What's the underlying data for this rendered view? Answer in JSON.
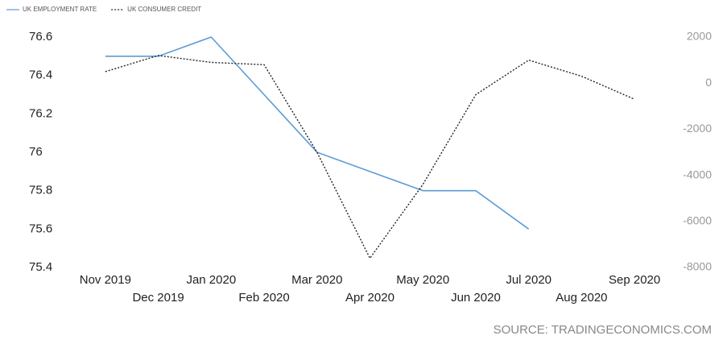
{
  "chart_data": {
    "type": "line",
    "categories": [
      "Nov 2019",
      "Dec 2019",
      "Jan 2020",
      "Feb 2020",
      "Mar 2020",
      "Apr 2020",
      "May 2020",
      "Jun 2020",
      "Jul 2020",
      "Aug 2020",
      "Sep 2020"
    ],
    "series": [
      {
        "name": "UK EMPLOYMENT RATE",
        "color": "#5b9bd5",
        "line_style": "solid",
        "axis": "y",
        "values": [
          76.5,
          76.5,
          76.6,
          76.3,
          76.0,
          75.9,
          75.8,
          75.8,
          75.6,
          null,
          null
        ]
      },
      {
        "name": "UK CONSUMER CREDIT",
        "color": "#222222",
        "line_style": "dotted",
        "axis": "y2",
        "values": [
          500,
          1200,
          900,
          800,
          -3000,
          -7600,
          -4400,
          -500,
          1000,
          300,
          -700
        ]
      }
    ],
    "ylim": [
      75.4,
      76.6
    ],
    "yticks": [
      75.4,
      75.6,
      75.8,
      76,
      76.2,
      76.4,
      76.6
    ],
    "y2lim": [
      -8000,
      2000
    ],
    "y2ticks": [
      -8000,
      -6000,
      -4000,
      -2000,
      0,
      2000
    ],
    "legend": "top-left",
    "source": "SOURCE: TRADINGECONOMICS.COM"
  }
}
